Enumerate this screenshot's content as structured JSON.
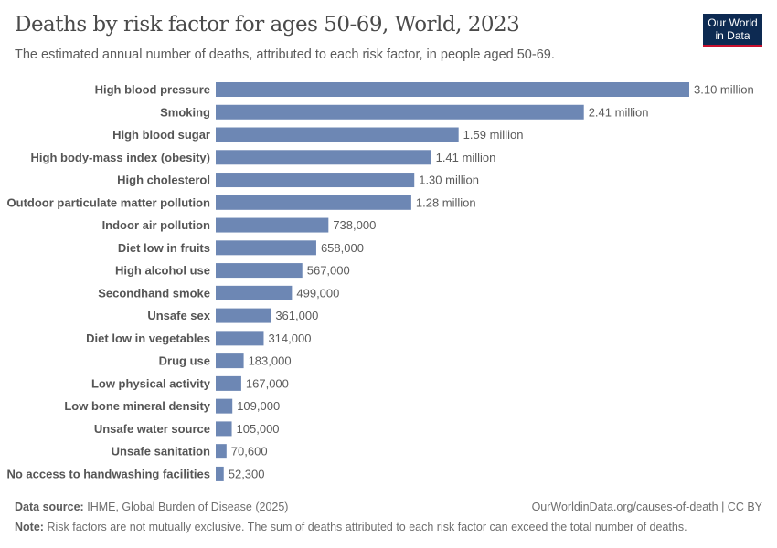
{
  "header": {
    "title": "Deaths by risk factor for ages 50-69, World, 2023",
    "subtitle": "The estimated annual number of deaths, attributed to each risk factor, in people aged 50-69.",
    "logo": "Our World in Data"
  },
  "chart_data": {
    "type": "bar",
    "orientation": "horizontal",
    "title": "Deaths by risk factor for ages 50-69, World, 2023",
    "bar_color": "#6d87b4",
    "categories": [
      "High blood pressure",
      "Smoking",
      "High blood sugar",
      "High body-mass index (obesity)",
      "High cholesterol",
      "Outdoor particulate matter pollution",
      "Indoor air pollution",
      "Diet low in fruits",
      "High alcohol use",
      "Secondhand smoke",
      "Unsafe sex",
      "Diet low in vegetables",
      "Drug use",
      "Low physical activity",
      "Low bone mineral density",
      "Unsafe water source",
      "Unsafe sanitation",
      "No access to handwashing facilities"
    ],
    "values": [
      3100000,
      2410000,
      1590000,
      1410000,
      1300000,
      1280000,
      738000,
      658000,
      567000,
      499000,
      361000,
      314000,
      183000,
      167000,
      109000,
      105000,
      70600,
      52300
    ],
    "labels": [
      "3.10 million",
      "2.41 million",
      "1.59 million",
      "1.41 million",
      "1.30 million",
      "1.28 million",
      "738,000",
      "658,000",
      "567,000",
      "499,000",
      "361,000",
      "314,000",
      "183,000",
      "167,000",
      "109,000",
      "105,000",
      "70,600",
      "52,300"
    ]
  },
  "footer": {
    "source_label": "Data source:",
    "source": "IHME, Global Burden of Disease (2025)",
    "url": "OurWorldinData.org/causes-of-death | CC BY",
    "note_label": "Note:",
    "note": "Risk factors are not mutually exclusive. The sum of deaths attributed to each risk factor can exceed the total number of deaths."
  }
}
